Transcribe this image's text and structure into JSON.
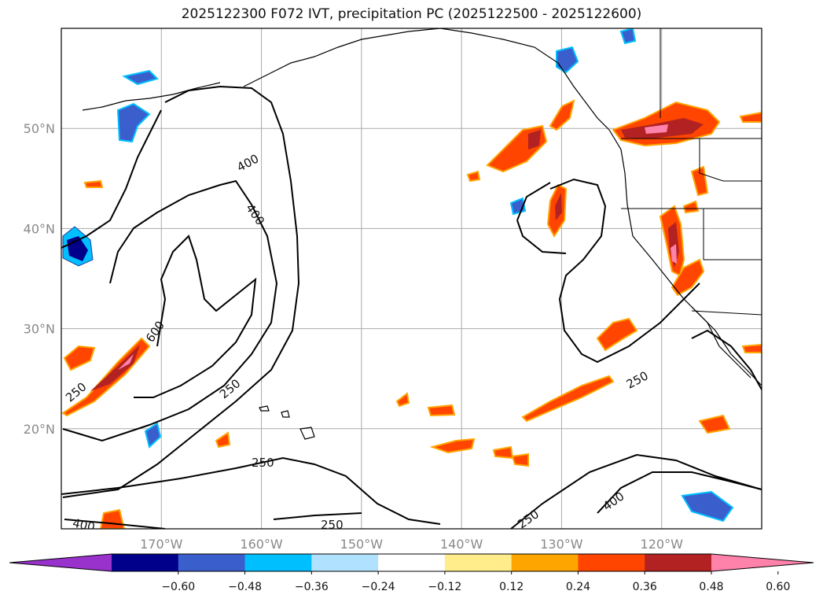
{
  "title": "2025122300 F072 IVT, precipitation PC (2025122500 - 2025122600)",
  "map": {
    "lon_range": [
      -180,
      -110
    ],
    "lat_range": [
      10,
      60
    ],
    "lon_ticks": [
      -170,
      -160,
      -150,
      -140,
      -130,
      -120
    ],
    "lat_ticks": [
      20,
      30,
      40,
      50
    ],
    "lon_tick_labels": [
      "170°W",
      "160°W",
      "150°W",
      "140°W",
      "130°W",
      "120°W"
    ],
    "lat_tick_labels": [
      "20°N",
      "30°N",
      "40°N",
      "50°N"
    ],
    "ivt_contour_levels": [
      250,
      400,
      600
    ],
    "contour_labels": [
      "400",
      "400",
      "600",
      "250",
      "250",
      "250",
      "250",
      "400",
      "250",
      "400",
      "250"
    ]
  },
  "colorbar": {
    "ticks": [
      "−0.60",
      "−0.48",
      "−0.36",
      "−0.24",
      "−0.12",
      "0.12",
      "0.24",
      "0.36",
      "0.48",
      "0.60"
    ],
    "colors": [
      "#9932CC",
      "#00008B",
      "#3A5FCD",
      "#00BFFF",
      "#B0E2FF",
      "#FFFFFF",
      "#FFEC8B",
      "#FFA500",
      "#FF4500",
      "#B22222",
      "#FF82AB"
    ]
  }
}
